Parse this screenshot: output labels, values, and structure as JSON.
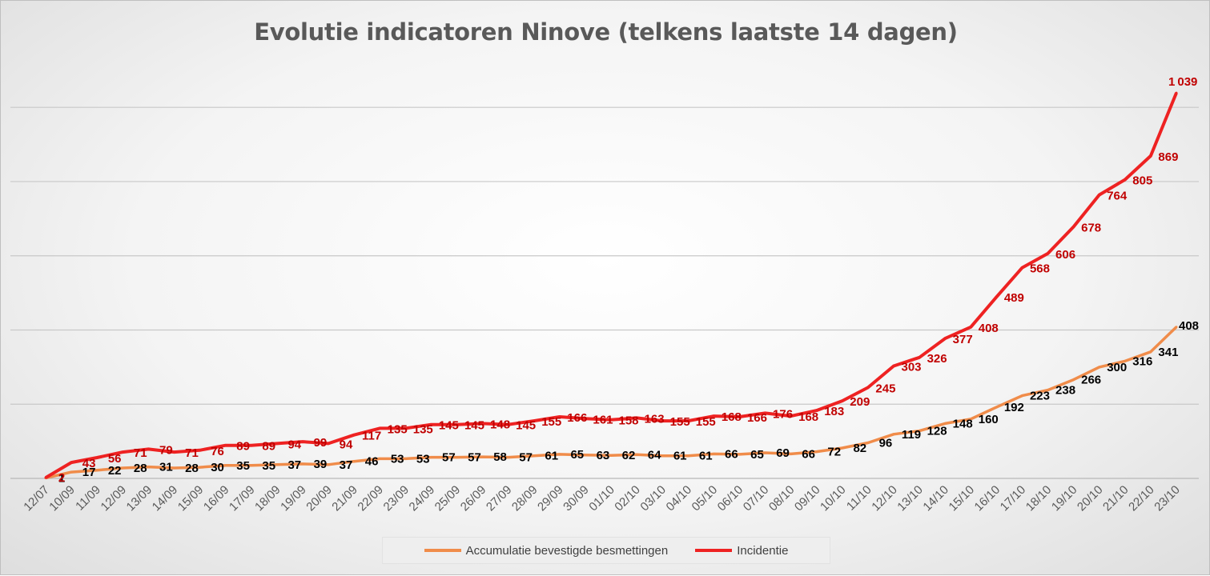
{
  "chart_data": {
    "type": "line",
    "title": "Evolutie indicatoren Ninove (telkens laatste 14 dagen)",
    "categories": [
      "12/07",
      "10/09",
      "11/09",
      "12/09",
      "13/09",
      "14/09",
      "15/09",
      "16/09",
      "17/09",
      "18/09",
      "19/09",
      "20/09",
      "21/09",
      "22/09",
      "23/09",
      "24/09",
      "25/09",
      "26/09",
      "27/09",
      "28/09",
      "29/09",
      "30/09",
      "01/10",
      "02/10",
      "03/10",
      "04/10",
      "05/10",
      "06/10",
      "07/10",
      "08/10",
      "09/10",
      "10/10",
      "11/10",
      "12/10",
      "13/10",
      "14/10",
      "15/10",
      "16/10",
      "17/10",
      "18/10",
      "19/10",
      "20/10",
      "21/10",
      "22/10",
      "23/10"
    ],
    "series": [
      {
        "name": "Accumulatie bevestigde besmettingen",
        "color": "#f08c4a",
        "label_color": "#000000",
        "values": [
          1,
          17,
          22,
          28,
          31,
          28,
          30,
          35,
          35,
          37,
          39,
          37,
          46,
          53,
          53,
          57,
          57,
          58,
          57,
          61,
          65,
          63,
          62,
          64,
          61,
          61,
          66,
          65,
          69,
          66,
          72,
          82,
          96,
          119,
          128,
          148,
          160,
          192,
          223,
          238,
          266,
          300,
          316,
          341,
          408
        ]
      },
      {
        "name": "Incidentie",
        "color": "#ee2222",
        "label_color": "#c00000",
        "values": [
          2,
          43,
          56,
          71,
          79,
          71,
          76,
          89,
          89,
          94,
          99,
          94,
          117,
          135,
          135,
          145,
          145,
          148,
          145,
          155,
          166,
          161,
          158,
          163,
          155,
          155,
          168,
          166,
          176,
          168,
          183,
          209,
          245,
          303,
          326,
          377,
          408,
          489,
          568,
          606,
          678,
          764,
          805,
          869,
          1039
        ]
      }
    ],
    "ylim": [
      0,
      1050
    ],
    "grid": true,
    "legend_position": "bottom"
  }
}
